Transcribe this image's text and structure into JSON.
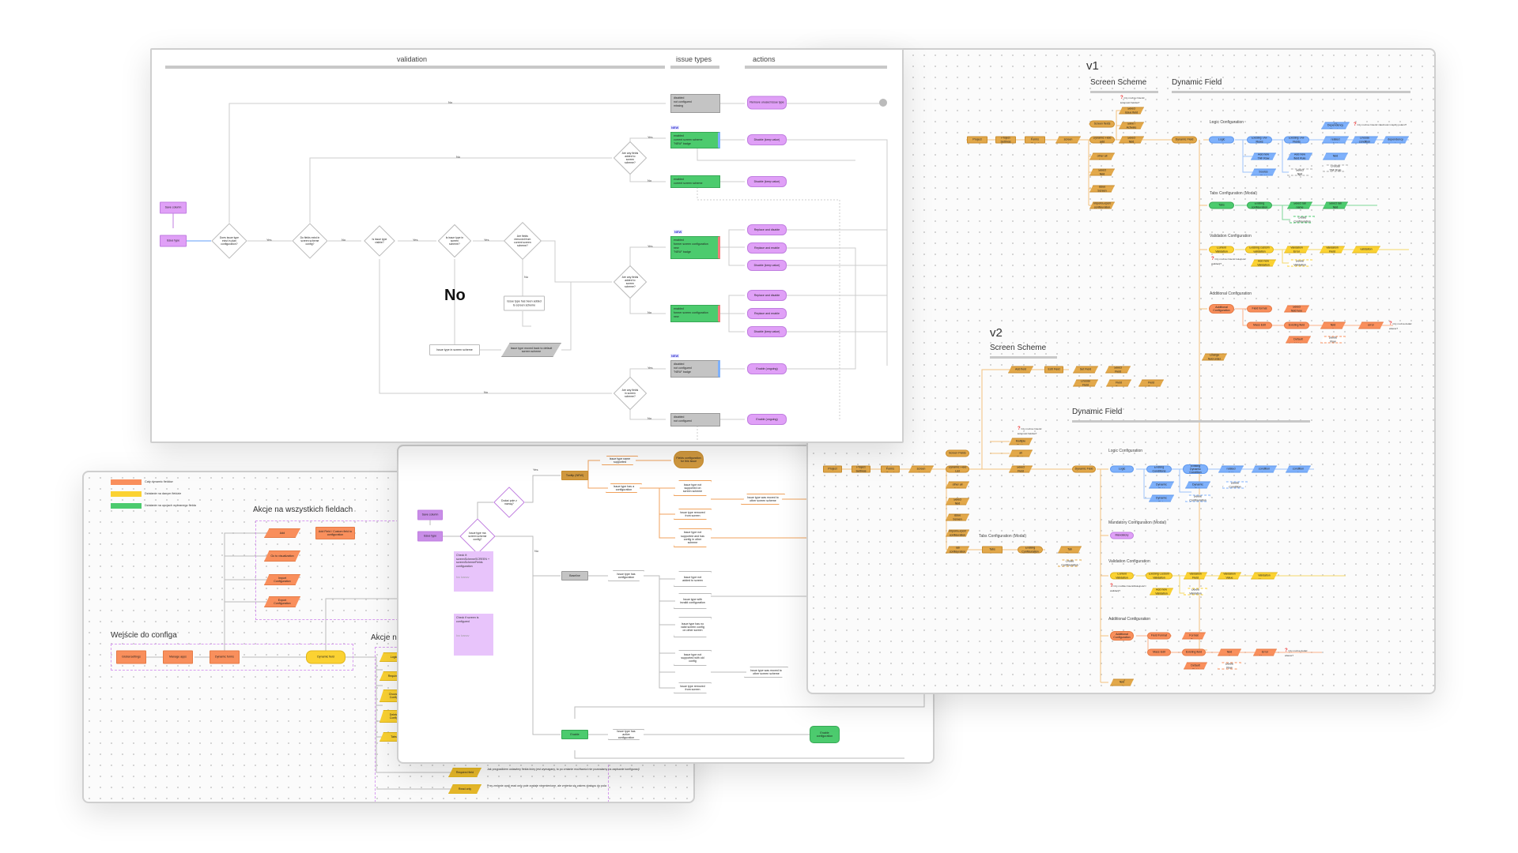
{
  "validation_panel": {
    "headers": {
      "validation": "validation",
      "issue_types": "issue types",
      "actions": "actions"
    },
    "save_column": "Save column",
    "issue_type": "Issue type",
    "diamonds": [
      "Does issue type exist in plan configuration?",
      "Do fields exist in screen scheme config?",
      "Is issue type visible?",
      "Is issue type in screen scheme?",
      "Are fields removed from current screen scheme?",
      "Are any fields added to screen scheme?",
      "Are any fields added to screen scheme?",
      "Are any fields in screen scheme?"
    ],
    "edge_labels": {
      "yes": "Yes",
      "no": "No"
    },
    "big_no": "No",
    "white_box_1": "Issue type has been added to screen scheme",
    "white_box_2": "Issue type in screen scheme",
    "gray_para": "Issue type moved back to default screen scheme",
    "new_badge": "NEW",
    "issue_type_boxes": [
      [
        "disabled",
        "not configured",
        "missing"
      ],
      [
        "enabled",
        "current screen scheme",
        "\"NEW\" badge"
      ],
      [
        "enabled",
        "current screen scheme"
      ],
      [
        "enabled",
        "former screen configuration",
        "new",
        "\"NEW\" badge"
      ],
      [
        "enabled",
        "former screen configuration",
        "new"
      ],
      [
        "disabled",
        "not configured",
        "\"NEW\" badge"
      ],
      [
        "disabled",
        "not configured"
      ]
    ],
    "actions": [
      "Remove unused issue type",
      "Disable (keep value)",
      "Disable (keep value)",
      "Replace and disable",
      "Replace and enable",
      "Disable (keep value)",
      "Replace and disable",
      "Replace and enable",
      "Disable (keep value)",
      "Enable (ongoing)",
      "Enable (ongoing)"
    ]
  },
  "versions_panel": {
    "v1": {
      "title": "v1",
      "screen_scheme": "Screen Scheme",
      "dynamic_field": "Dynamic Field",
      "chain": [
        "Project",
        "Project Settings",
        "Dynamic Forms Board",
        "Select screen scheme"
      ],
      "branches": [
        "Screen fields",
        "Dynamic Field add",
        "Choose other all fields",
        "Select field",
        "Choose issue Screen Section",
        "Import/Export configuration"
      ],
      "upper": [
        "Select issue field",
        "Save / Activate",
        "Select field"
      ],
      "question": "Czy można zmienić kolejność fieldów?",
      "dynamic_node": "Dynamic Field",
      "logic": {
        "label": "Logic Configuration",
        "nodes": [
          "Logic",
          "Existing TAF Rows",
          "Existing TAF Fields",
          "Trigger Dependency Mapping",
          "Select related field",
          "Choose condition",
          "Choose dependency value"
        ],
        "sub": [
          "Add new TAF Row",
          "Select Source Field",
          "Add new field Rule",
          "Select field value",
          "Select field",
          "Choose TAF Rule"
        ],
        "question": "Czy można zmienić zależności między polami?"
      },
      "tabs": {
        "label": "Tabs Configuration (Modal)",
        "nodes": [
          "Tabs",
          "Existing configuration",
          "Select tab name",
          "Select tab field"
        ],
        "sub": [
          "Create Configuration"
        ]
      },
      "validation": {
        "label": "Validation Configuration",
        "nodes": [
          "Current Validation",
          "Existing custom validation",
          "Validation Error",
          "Validation Field",
          "Choose validation operator"
        ],
        "sub": [
          "Add new Validation",
          "Delete Validation"
        ],
        "question": "Czy można zmienić kolejność walidacji?"
      },
      "additional": {
        "label": "Additional Configuration",
        "nodes": [
          "Additional Configuration",
          "Field format",
          "Select field type",
          "Mass Edit",
          "Existing field",
          "Select field option",
          "Add field error message"
        ],
        "sub": [
          "Add new Default Value",
          "Delete Row"
        ],
        "question": "Czy można dodać własne?"
      },
      "bottom": "Change field order"
    },
    "v2": {
      "title": "v2",
      "screen_scheme": "Screen Scheme",
      "dynamic_field": "Dynamic Field",
      "scheme_nodes": [
        "Add field",
        "Edit Field",
        "Set Field",
        "Select Field",
        "Choose Field",
        "Select Field Type",
        "Select Field Type"
      ],
      "chain": [
        "Project",
        "Project Settings",
        "Dynamic Forms Board",
        "Select screen scheme"
      ],
      "branches": [
        "Screen Fields",
        "Dynamic Field List",
        "Choose other all fields",
        "Select field",
        "Choose issue Screen Section",
        "Import/Export configuration",
        "Tab configuration"
      ],
      "upper": [
        "Select Multiple Fields",
        "Select all Fields",
        "Select Field"
      ],
      "question": "Czy można zmienić kolejność fieldów?",
      "dynamic_node": "Dynamic Field",
      "logic": {
        "label": "Logic Configuration",
        "nodes": [
          "Logic",
          "Existing Conditions",
          "Existing Dynamic Condition",
          "Select related field",
          "Select condition type",
          "Select condition value"
        ],
        "sub": [
          "Add New Dynamic Field",
          "Add New Dynamic Rule",
          "Delete Dynamic Rule",
          "Delete Configuration",
          "Delete Condition"
        ]
      },
      "mandatory": {
        "label": "Mandatory Configuration (Modal)",
        "nodes": [
          "Mandatory"
        ]
      },
      "tabs": {
        "label": "Tabs Configuration (Modal)",
        "nodes": [
          "Tabs",
          "Existing Configuration",
          "Select Tab Name"
        ],
        "sub": [
          "Create Configuration"
        ]
      },
      "validation": {
        "label": "Validation Configuration",
        "nodes": [
          "Current Validation",
          "Existing Custom Validation",
          "Validation Field",
          "Validation Value",
          "Custom Validation Message"
        ],
        "sub": [
          "Add new Validation",
          "Delete Validation"
        ],
        "question": "Czy można zmienić kolejność walidacji?"
      },
      "additional": {
        "label": "Additional Configuraiton",
        "nodes": [
          "Additional Configuration",
          "Field Format",
          "Pick Format Type",
          "Mass Edit",
          "Existing field",
          "Select field option",
          "Add Error Message"
        ],
        "sub": [
          "Add new Default Field",
          "Delete Row"
        ],
        "question": "Czy można dodać własne?"
      },
      "bottom": "Change field order"
    }
  },
  "flow_panel": {
    "save_column": "Save column",
    "issue_type": "Issue type",
    "diamond_1": "Dodać pole z nazwą?",
    "diamond_2": "Issue type ma screen scheme config?",
    "edge_labels": {
      "yes": "Yes",
      "no": "No"
    },
    "note_1": "Check if: screenSchemeSCREEN + screenSchemeFields configuration",
    "note_1_author": "Ivo Ivanov",
    "note_2": "Check if screen is configured",
    "note_2_author": "Ivo Ivanov",
    "tooltip": "Tooltip (NEW)",
    "tooltip_end": "Fields configuration for this issue",
    "orange_paras": [
      "Issue type name supported",
      "Issue type has a configuration",
      "Issue type not supported on screen scheme",
      "Issue type removed from screen",
      "Issue type not supported and has config in other scheme",
      "Issue type was moved to other screen scheme"
    ],
    "baseline": "Baseline",
    "gray_paras": [
      "Issue type has configuration",
      "Issue type not added to screen",
      "Issue type with invalid configuration",
      "Issue type has no valid screen config on other screen",
      "Issue type not supported with old config",
      "Issue type removed from screen",
      "Issue type was moved to other screen scheme"
    ],
    "enable": "Enable",
    "enable_para": "Issue type has active configuration",
    "enable_end": "Enable configuration"
  },
  "actions_panel": {
    "legend": [
      {
        "label": "Cały dynamic fieldów",
        "color": "#f98f5c"
      },
      {
        "label": "Działanie na danym fieldzie",
        "color": "#fbd232"
      },
      {
        "label": "Działanie na opcjach wybranego fielda",
        "color": "#4ccb6e"
      }
    ],
    "all_fields_title": "Akcje na wszystkich fieldach",
    "all_fields_nodes": [
      "Add",
      "Add Field / Custom field to configuration",
      "Go to visualization",
      "Import Configuration",
      "Export Configuration"
    ],
    "entry_title": "Wejście do configa",
    "entry_nodes": [
      "Global settings",
      "Manage apps",
      "Dynamic forms",
      "Dynamic field"
    ],
    "field_actions_title": "Akcje na",
    "field_nodes": [
      "Logic",
      "Required",
      "Choose Config",
      "Delete Config",
      "Tabs"
    ],
    "bottom_nodes": [
      {
        "label": "Required field",
        "note": "Jak przypadkiem ustawimy fielda który jest wymagany, to po zmianie możliwości nie pozwalamy na zapisanie konfiguracji"
      },
      {
        "label": "Read only",
        "note": "Przy zmianie opcji read only pole zostaje niezmienione, ale zmienia się zakres dostępu do pola"
      }
    ]
  }
}
